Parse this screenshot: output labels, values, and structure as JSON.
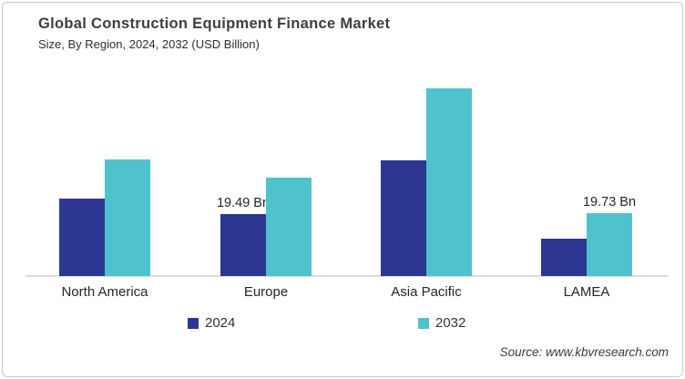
{
  "header": {
    "title": "Global Construction Equipment Finance Market",
    "subtitle": "Size, By Region, 2024, 2032 (USD Billion)"
  },
  "legend": [
    {
      "label": "2024",
      "color": "#2c3792"
    },
    {
      "label": "2032",
      "color": "#4ec3cd"
    }
  ],
  "source": "Source: www.kbvresearch.com",
  "colors": {
    "series_2024": "#2c3792",
    "series_2032": "#4ec3cd",
    "axis_line": "#dcdcdc",
    "border": "#c9c9c9",
    "title_text": "#3f3f3f",
    "label_text": "#262626"
  },
  "chart_data": {
    "type": "bar",
    "title": "Global Construction Equipment Finance Market Size, By Region, 2024, 2032 (USD Billion)",
    "xlabel": "",
    "ylabel": "USD Billion",
    "categories": [
      "North America",
      "Europe",
      "Asia Pacific",
      "LAMEA"
    ],
    "series": [
      {
        "name": "2024",
        "color": "#2c3792",
        "values": [
          24.3,
          19.49,
          36.2,
          11.7
        ]
      },
      {
        "name": "2032",
        "color": "#4ec3cd",
        "values": [
          36.6,
          30.8,
          58.8,
          19.73
        ]
      }
    ],
    "data_labels": [
      {
        "category": "Europe",
        "series": "2024",
        "text": "19.49 Bn"
      },
      {
        "category": "LAMEA",
        "series": "2032",
        "text": "19.73 Bn"
      }
    ],
    "ylim": [
      0,
      62
    ],
    "grid": false,
    "legend_position": "bottom",
    "note": "Only Europe 2024 and LAMEA 2032 values are labeled on chart; other values estimated from bar heights."
  }
}
